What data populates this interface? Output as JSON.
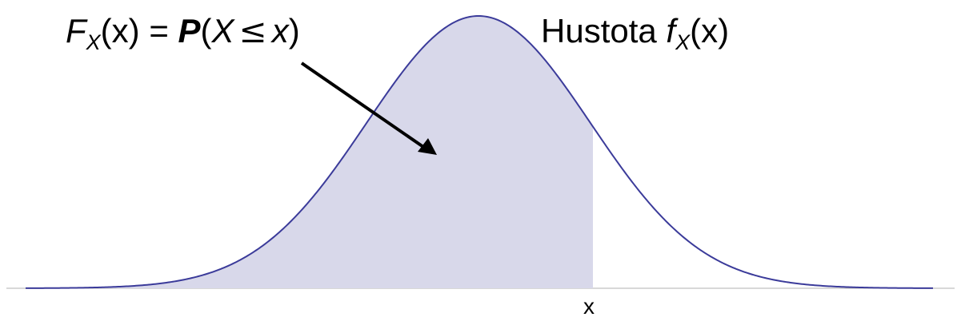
{
  "cdf_label": {
    "F": "F",
    "F_sub": "X",
    "F_arg": "(x) = ",
    "P": "P",
    "open": "(",
    "X": "X",
    "leq": "≤",
    "x": "x",
    "close": ")"
  },
  "pdf_label": {
    "word": "Hustota ",
    "f": "f",
    "f_sub": "X",
    "f_arg": "(x)"
  },
  "axis_marker": "x",
  "colors": {
    "curve": "#3b3b9a",
    "shading": "#d8d8ea",
    "arrow": "#000000",
    "axis": "#b0b0b0"
  }
}
